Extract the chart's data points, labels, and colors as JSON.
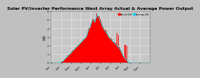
{
  "title": "Solar PV/Inverter Performance West Array Actual & Average Power Output",
  "title_fontsize": 4.5,
  "bg_color": "#c0c0c0",
  "plot_bg_color": "#c8c8c8",
  "bar_color": "#ff0000",
  "avg_line_color": "#00ffff",
  "grid_color": "#ffffff",
  "ylabel": "kW",
  "ylabel_fontsize": 3.5,
  "xlabel_fontsize": 3.0,
  "ylim": [
    0,
    6
  ],
  "yticks": [
    0,
    1,
    2,
    3,
    4,
    5,
    6
  ],
  "legend_actual": "Actual kW",
  "legend_avg": "Average kW",
  "legend_color_actual": "#ff0000",
  "legend_color_avg": "#00ccff",
  "n_points": 120,
  "bar_values": [
    0,
    0,
    0,
    0,
    0,
    0,
    0,
    0,
    0,
    0,
    0.05,
    0.08,
    0.1,
    0.15,
    0.2,
    0.3,
    0.4,
    0.5,
    0.6,
    0.7,
    0.8,
    0.9,
    1.0,
    1.1,
    1.2,
    1.3,
    1.4,
    1.5,
    1.6,
    1.7,
    1.8,
    1.9,
    2.0,
    2.1,
    2.2,
    2.3,
    2.4,
    2.5,
    2.6,
    2.7,
    2.8,
    2.9,
    3.0,
    3.2,
    3.5,
    3.8,
    4.0,
    4.2,
    4.5,
    4.8,
    5.0,
    5.1,
    5.0,
    4.8,
    5.2,
    5.5,
    5.8,
    5.6,
    5.4,
    5.2,
    5.0,
    4.8,
    4.5,
    4.3,
    4.1,
    3.9,
    3.8,
    3.7,
    3.5,
    3.3,
    3.1,
    3.0,
    2.9,
    2.8,
    2.7,
    2.6,
    2.5,
    2.4,
    2.3,
    2.2,
    2.1,
    2.0,
    1.9,
    1.8,
    1.6,
    1.4,
    1.2,
    1.0,
    0.8,
    0.6,
    0.5,
    0.4,
    0.3,
    0.2,
    0.1,
    0.05,
    0,
    0,
    0,
    0,
    0,
    0,
    0,
    0,
    0,
    0,
    0,
    0,
    0,
    0,
    0,
    0,
    0,
    0,
    0,
    0,
    0,
    0,
    0,
    0
  ],
  "spike_indices": [
    55,
    56,
    57,
    80,
    82,
    90,
    92
  ],
  "spike_values": [
    5.8,
    5.6,
    5.4,
    3.5,
    3.2,
    2.1,
    2.0
  ],
  "avg_line_values": [
    0,
    0,
    0,
    0,
    0,
    0,
    0,
    0,
    0,
    0,
    0.04,
    0.07,
    0.09,
    0.13,
    0.18,
    0.28,
    0.38,
    0.48,
    0.58,
    0.65,
    0.75,
    0.85,
    0.95,
    1.05,
    1.15,
    1.25,
    1.35,
    1.45,
    1.55,
    1.65,
    1.75,
    1.85,
    1.95,
    2.05,
    2.15,
    2.25,
    2.35,
    2.45,
    2.55,
    2.65,
    2.75,
    2.85,
    2.95,
    3.1,
    3.4,
    3.7,
    3.9,
    4.1,
    4.4,
    4.7,
    4.9,
    5.0,
    4.9,
    4.7,
    5.1,
    5.3,
    5.6,
    5.4,
    5.2,
    5.0,
    4.8,
    4.6,
    4.3,
    4.1,
    3.9,
    3.75,
    3.65,
    3.55,
    3.4,
    3.2,
    3.0,
    2.9,
    2.8,
    2.7,
    2.6,
    2.5,
    2.4,
    2.3,
    2.2,
    2.1,
    2.0,
    1.9,
    1.8,
    1.7,
    1.55,
    1.35,
    1.15,
    0.95,
    0.75,
    0.55,
    0.45,
    0.35,
    0.25,
    0.18,
    0.09,
    0.04,
    0,
    0,
    0,
    0,
    0,
    0,
    0,
    0,
    0,
    0,
    0,
    0,
    0,
    0,
    0,
    0,
    0,
    0,
    0,
    0,
    0,
    0,
    0,
    0
  ]
}
